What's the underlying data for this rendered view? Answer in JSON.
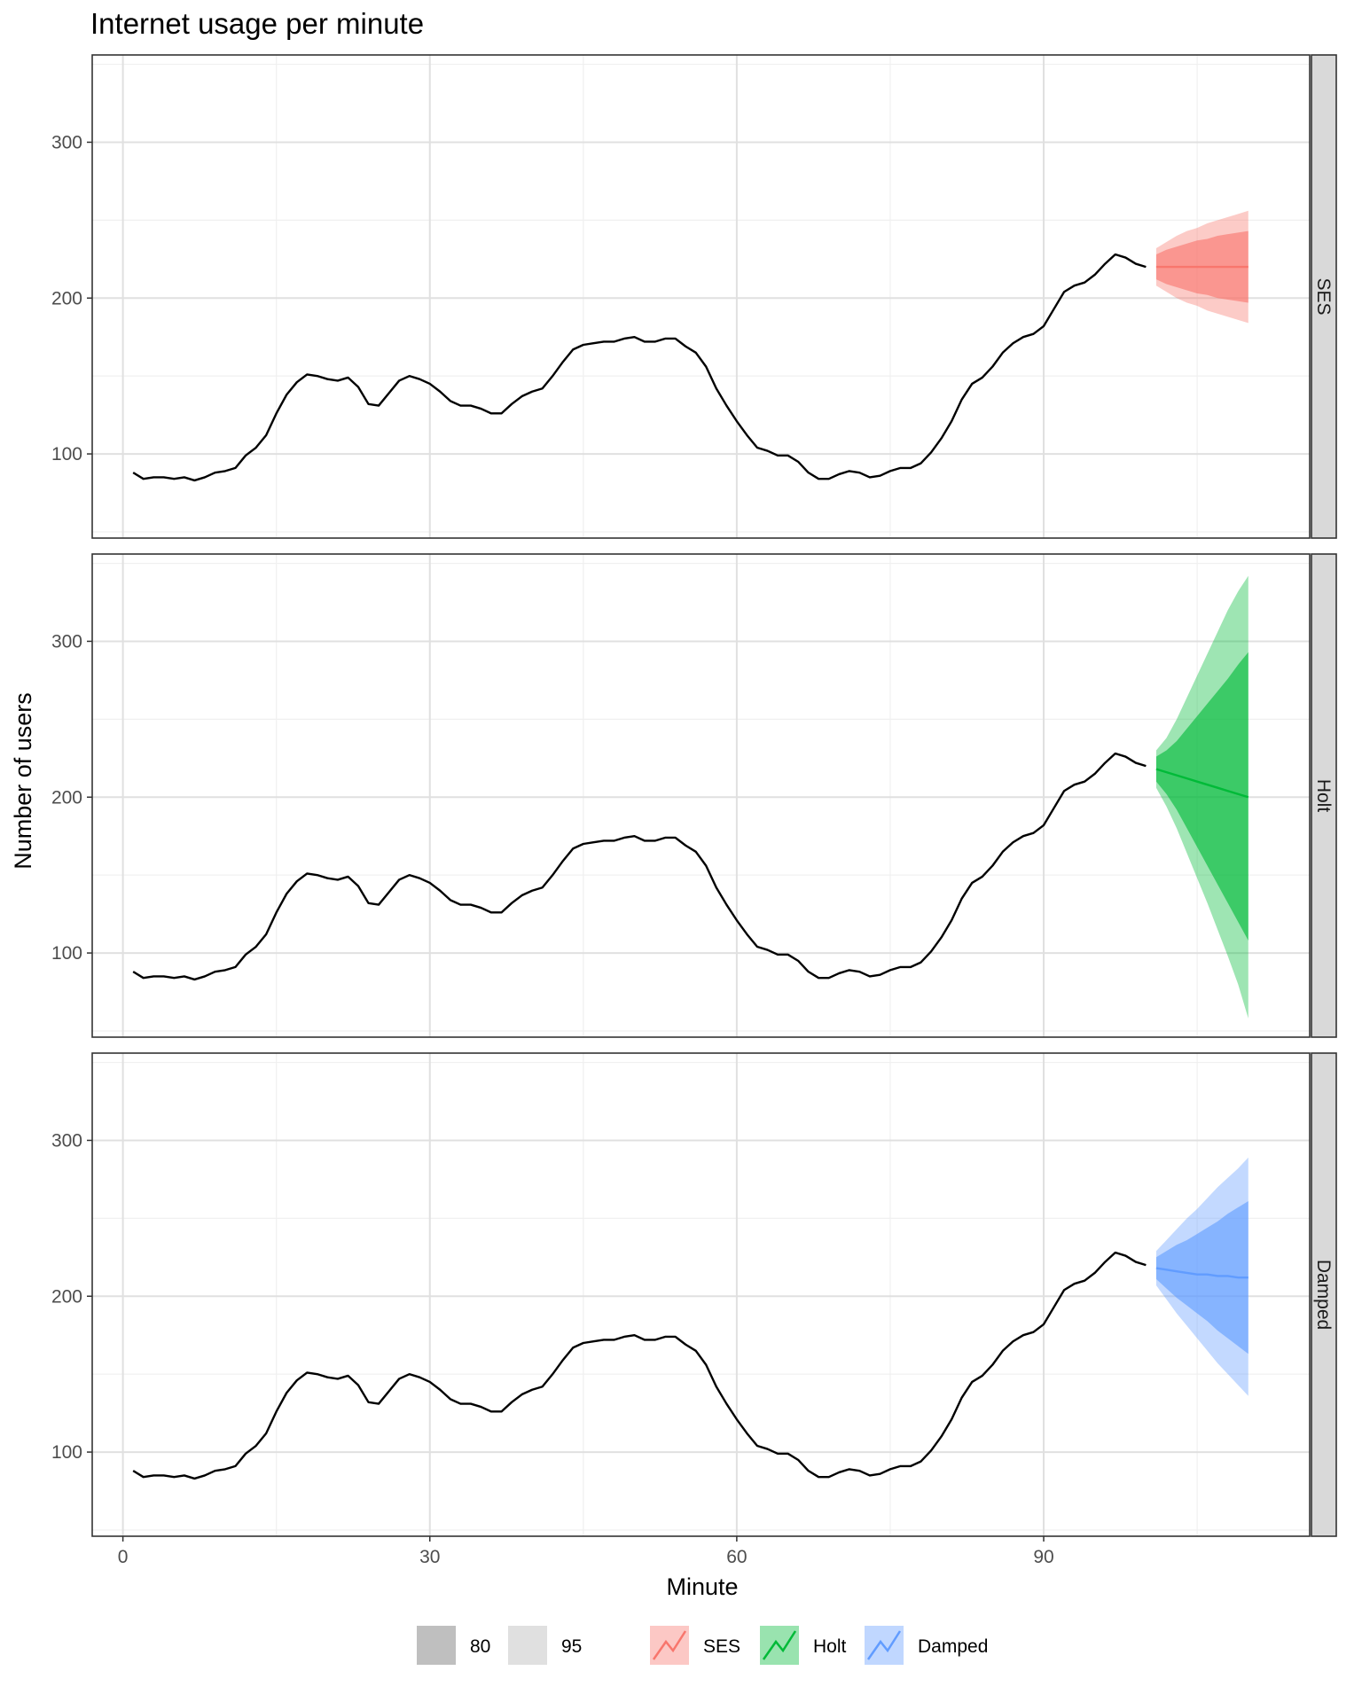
{
  "chart_data": {
    "type": "line",
    "title": "Internet usage per minute",
    "xlabel": "Minute",
    "ylabel": "Number of users",
    "xlim": [
      -3,
      116
    ],
    "ylim": [
      46,
      356
    ],
    "x_ticks": [
      0,
      30,
      60,
      90
    ],
    "x_tick_labels": [
      "0",
      "30",
      "60",
      "90"
    ],
    "y_ticks": [
      100,
      200,
      300
    ],
    "y_tick_labels": [
      "100",
      "200",
      "300"
    ],
    "grid": true,
    "legend_position": "bottom",
    "observed": {
      "x_start": 1,
      "values": [
        88,
        84,
        85,
        85,
        84,
        85,
        83,
        85,
        88,
        89,
        91,
        99,
        104,
        112,
        126,
        138,
        146,
        151,
        150,
        148,
        147,
        149,
        143,
        132,
        131,
        139,
        147,
        150,
        148,
        145,
        140,
        134,
        131,
        131,
        129,
        126,
        126,
        132,
        137,
        140,
        142,
        150,
        159,
        167,
        170,
        171,
        172,
        172,
        174,
        175,
        172,
        172,
        174,
        174,
        169,
        165,
        156,
        142,
        131,
        121,
        112,
        104,
        102,
        99,
        99,
        95,
        88,
        84,
        84,
        87,
        89,
        88,
        85,
        86,
        89,
        91,
        91,
        94,
        101,
        110,
        121,
        135,
        145,
        149,
        156,
        165,
        171,
        175,
        177,
        182,
        193,
        204,
        208,
        210,
        215,
        222,
        228,
        226,
        222,
        220
      ]
    },
    "forecast_x": [
      101,
      102,
      103,
      104,
      105,
      106,
      107,
      108,
      109,
      110
    ],
    "facets": [
      {
        "name": "SES",
        "color": "#F8766D",
        "mean": [
          220,
          220,
          220,
          220,
          220,
          220,
          220,
          220,
          220,
          220
        ],
        "lo80": [
          212,
          209,
          207,
          205,
          203,
          202,
          200,
          199,
          198,
          197
        ],
        "hi80": [
          228,
          231,
          233,
          235,
          237,
          238,
          240,
          241,
          242,
          243
        ],
        "lo95": [
          208,
          204,
          200,
          197,
          195,
          192,
          190,
          188,
          186,
          184
        ],
        "hi95": [
          232,
          236,
          240,
          243,
          245,
          248,
          250,
          252,
          254,
          256
        ]
      },
      {
        "name": "Holt",
        "color": "#00BA38",
        "mean": [
          218,
          216,
          214,
          212,
          210,
          208,
          206,
          204,
          202,
          200
        ],
        "lo80": [
          210,
          202,
          192,
          180,
          168,
          156,
          144,
          132,
          120,
          108
        ],
        "hi80": [
          226,
          230,
          236,
          244,
          252,
          260,
          268,
          276,
          285,
          293
        ],
        "lo95": [
          206,
          194,
          180,
          164,
          148,
          132,
          115,
          98,
          80,
          58
        ],
        "hi95": [
          230,
          238,
          250,
          264,
          278,
          292,
          306,
          320,
          332,
          342
        ]
      },
      {
        "name": "Damped",
        "color": "#619CFF",
        "mean": [
          218,
          217,
          216,
          215,
          214,
          214,
          213,
          213,
          212,
          212
        ],
        "lo80": [
          211,
          205,
          199,
          194,
          189,
          184,
          178,
          173,
          168,
          163
        ],
        "hi80": [
          225,
          229,
          233,
          236,
          240,
          244,
          248,
          253,
          257,
          261
        ],
        "lo95": [
          207,
          198,
          189,
          181,
          173,
          165,
          157,
          150,
          143,
          136
        ],
        "hi95": [
          229,
          236,
          243,
          250,
          256,
          263,
          270,
          276,
          282,
          289
        ]
      }
    ],
    "legend": {
      "levels": [
        {
          "label": "80",
          "color": "#bfbfbf"
        },
        {
          "label": "95",
          "color": "#e0e0e0"
        }
      ],
      "series": [
        {
          "label": "SES",
          "color": "#F8766D"
        },
        {
          "label": "Holt",
          "color": "#00BA38"
        },
        {
          "label": "Damped",
          "color": "#619CFF"
        }
      ]
    }
  }
}
